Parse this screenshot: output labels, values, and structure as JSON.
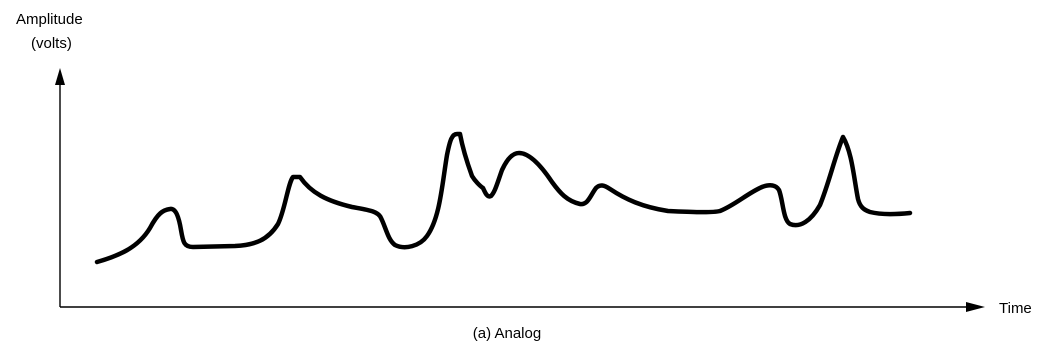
{
  "labels": {
    "y_axis_line1": "Amplitude",
    "y_axis_line2": "(volts)",
    "x_axis": "Time",
    "caption": "(a) Analog"
  },
  "colors": {
    "background": "#ffffff",
    "ink": "#000000"
  }
}
